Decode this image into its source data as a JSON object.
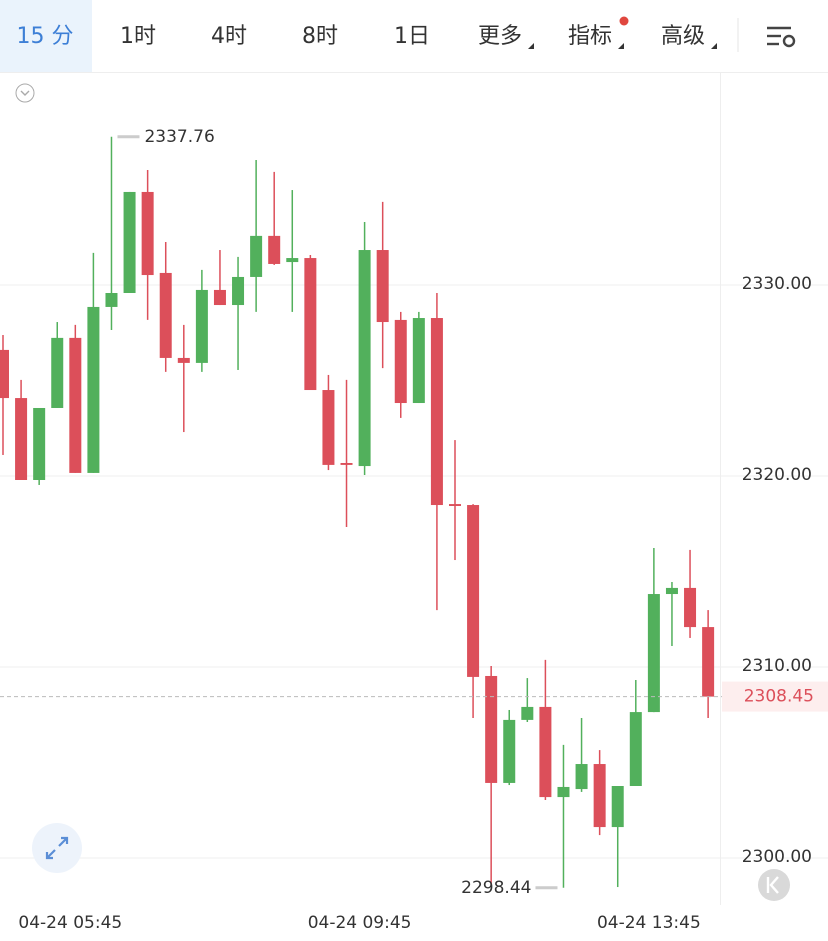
{
  "toolbar": {
    "tabs": [
      "15 分",
      "1时",
      "4时",
      "8时",
      "1日",
      "更多",
      "指标",
      "高级"
    ]
  },
  "chart_data": {
    "type": "candlestick",
    "categories": [
      null,
      null,
      null,
      null,
      "04-24 05:45",
      null,
      null,
      null,
      null,
      null,
      null,
      null,
      null,
      null,
      null,
      null,
      null,
      null,
      null,
      null,
      "04-24 09:45",
      null,
      null,
      null,
      null,
      null,
      null,
      null,
      null,
      null,
      null,
      null,
      null,
      null,
      null,
      null,
      "04-24 13:45",
      null,
      null,
      null
    ],
    "open": [
      2326.6,
      2324.08,
      2319.79,
      2323.56,
      2327.23,
      2320.16,
      2328.85,
      2329.58,
      2334.87,
      2330.63,
      2326.18,
      2325.92,
      2329.74,
      2328.95,
      2330.42,
      2332.57,
      2331.2,
      2331.41,
      2324.5,
      2320.68,
      2320.52,
      2331.83,
      2328.17,
      2323.82,
      2328.27,
      2318.53,
      2318.48,
      2309.53,
      2303.93,
      2307.23,
      2307.91,
      2303.19,
      2303.61,
      2304.92,
      2301.62,
      2303.77,
      2307.64,
      2313.82,
      2314.14,
      2312.09
    ],
    "high": [
      2327.38,
      2325.03,
      2323.56,
      2328.06,
      2327.91,
      2331.68,
      2337.76,
      2334.87,
      2336.02,
      2332.25,
      2327.91,
      2330.79,
      2331.83,
      2331.47,
      2336.54,
      2335.92,
      2334.97,
      2331.57,
      2325.29,
      2325.03,
      2333.3,
      2334.35,
      2328.59,
      2328.59,
      2329.58,
      2321.88,
      2318.53,
      2310.05,
      2307.75,
      2309.42,
      2310.37,
      2305.92,
      2307.33,
      2305.65,
      2303.77,
      2309.32,
      2316.23,
      2314.45,
      2316.13,
      2312.98
    ],
    "low": [
      2321.1,
      2319.79,
      2319.53,
      2323.56,
      2320.16,
      2320.16,
      2327.64,
      2329.58,
      2328.17,
      2325.45,
      2322.3,
      2325.45,
      2328.95,
      2325.55,
      2328.59,
      2331.05,
      2328.59,
      2324.5,
      2320.31,
      2317.33,
      2320.05,
      2325.65,
      2323.04,
      2323.82,
      2312.98,
      2315.6,
      2307.33,
      2298.59,
      2303.82,
      2307.12,
      2303.04,
      2298.44,
      2303.46,
      2301.2,
      2298.48,
      2303.77,
      2307.64,
      2311.1,
      2311.52,
      2307.33
    ],
    "close": [
      2324.08,
      2319.79,
      2323.56,
      2327.23,
      2320.16,
      2328.85,
      2329.58,
      2334.87,
      2330.52,
      2326.18,
      2325.92,
      2329.74,
      2328.95,
      2330.42,
      2332.57,
      2331.1,
      2331.41,
      2324.5,
      2320.58,
      2320.58,
      2331.83,
      2328.06,
      2323.82,
      2328.27,
      2318.48,
      2318.43,
      2309.48,
      2303.93,
      2307.23,
      2307.91,
      2303.19,
      2303.72,
      2304.92,
      2301.62,
      2303.77,
      2307.64,
      2313.82,
      2314.14,
      2312.09,
      2308.45
    ],
    "up_color": "#52b05c",
    "down_color": "#dc4f5a",
    "ylim": [
      2297.54,
      2341.15
    ],
    "yticks": [
      {
        "value": 2300,
        "label": "2300.00"
      },
      {
        "value": 2310,
        "label": "2310.00"
      },
      {
        "value": 2320,
        "label": "2320.00"
      },
      {
        "value": 2330,
        "label": "2330.00"
      }
    ],
    "grid": true
  }
}
